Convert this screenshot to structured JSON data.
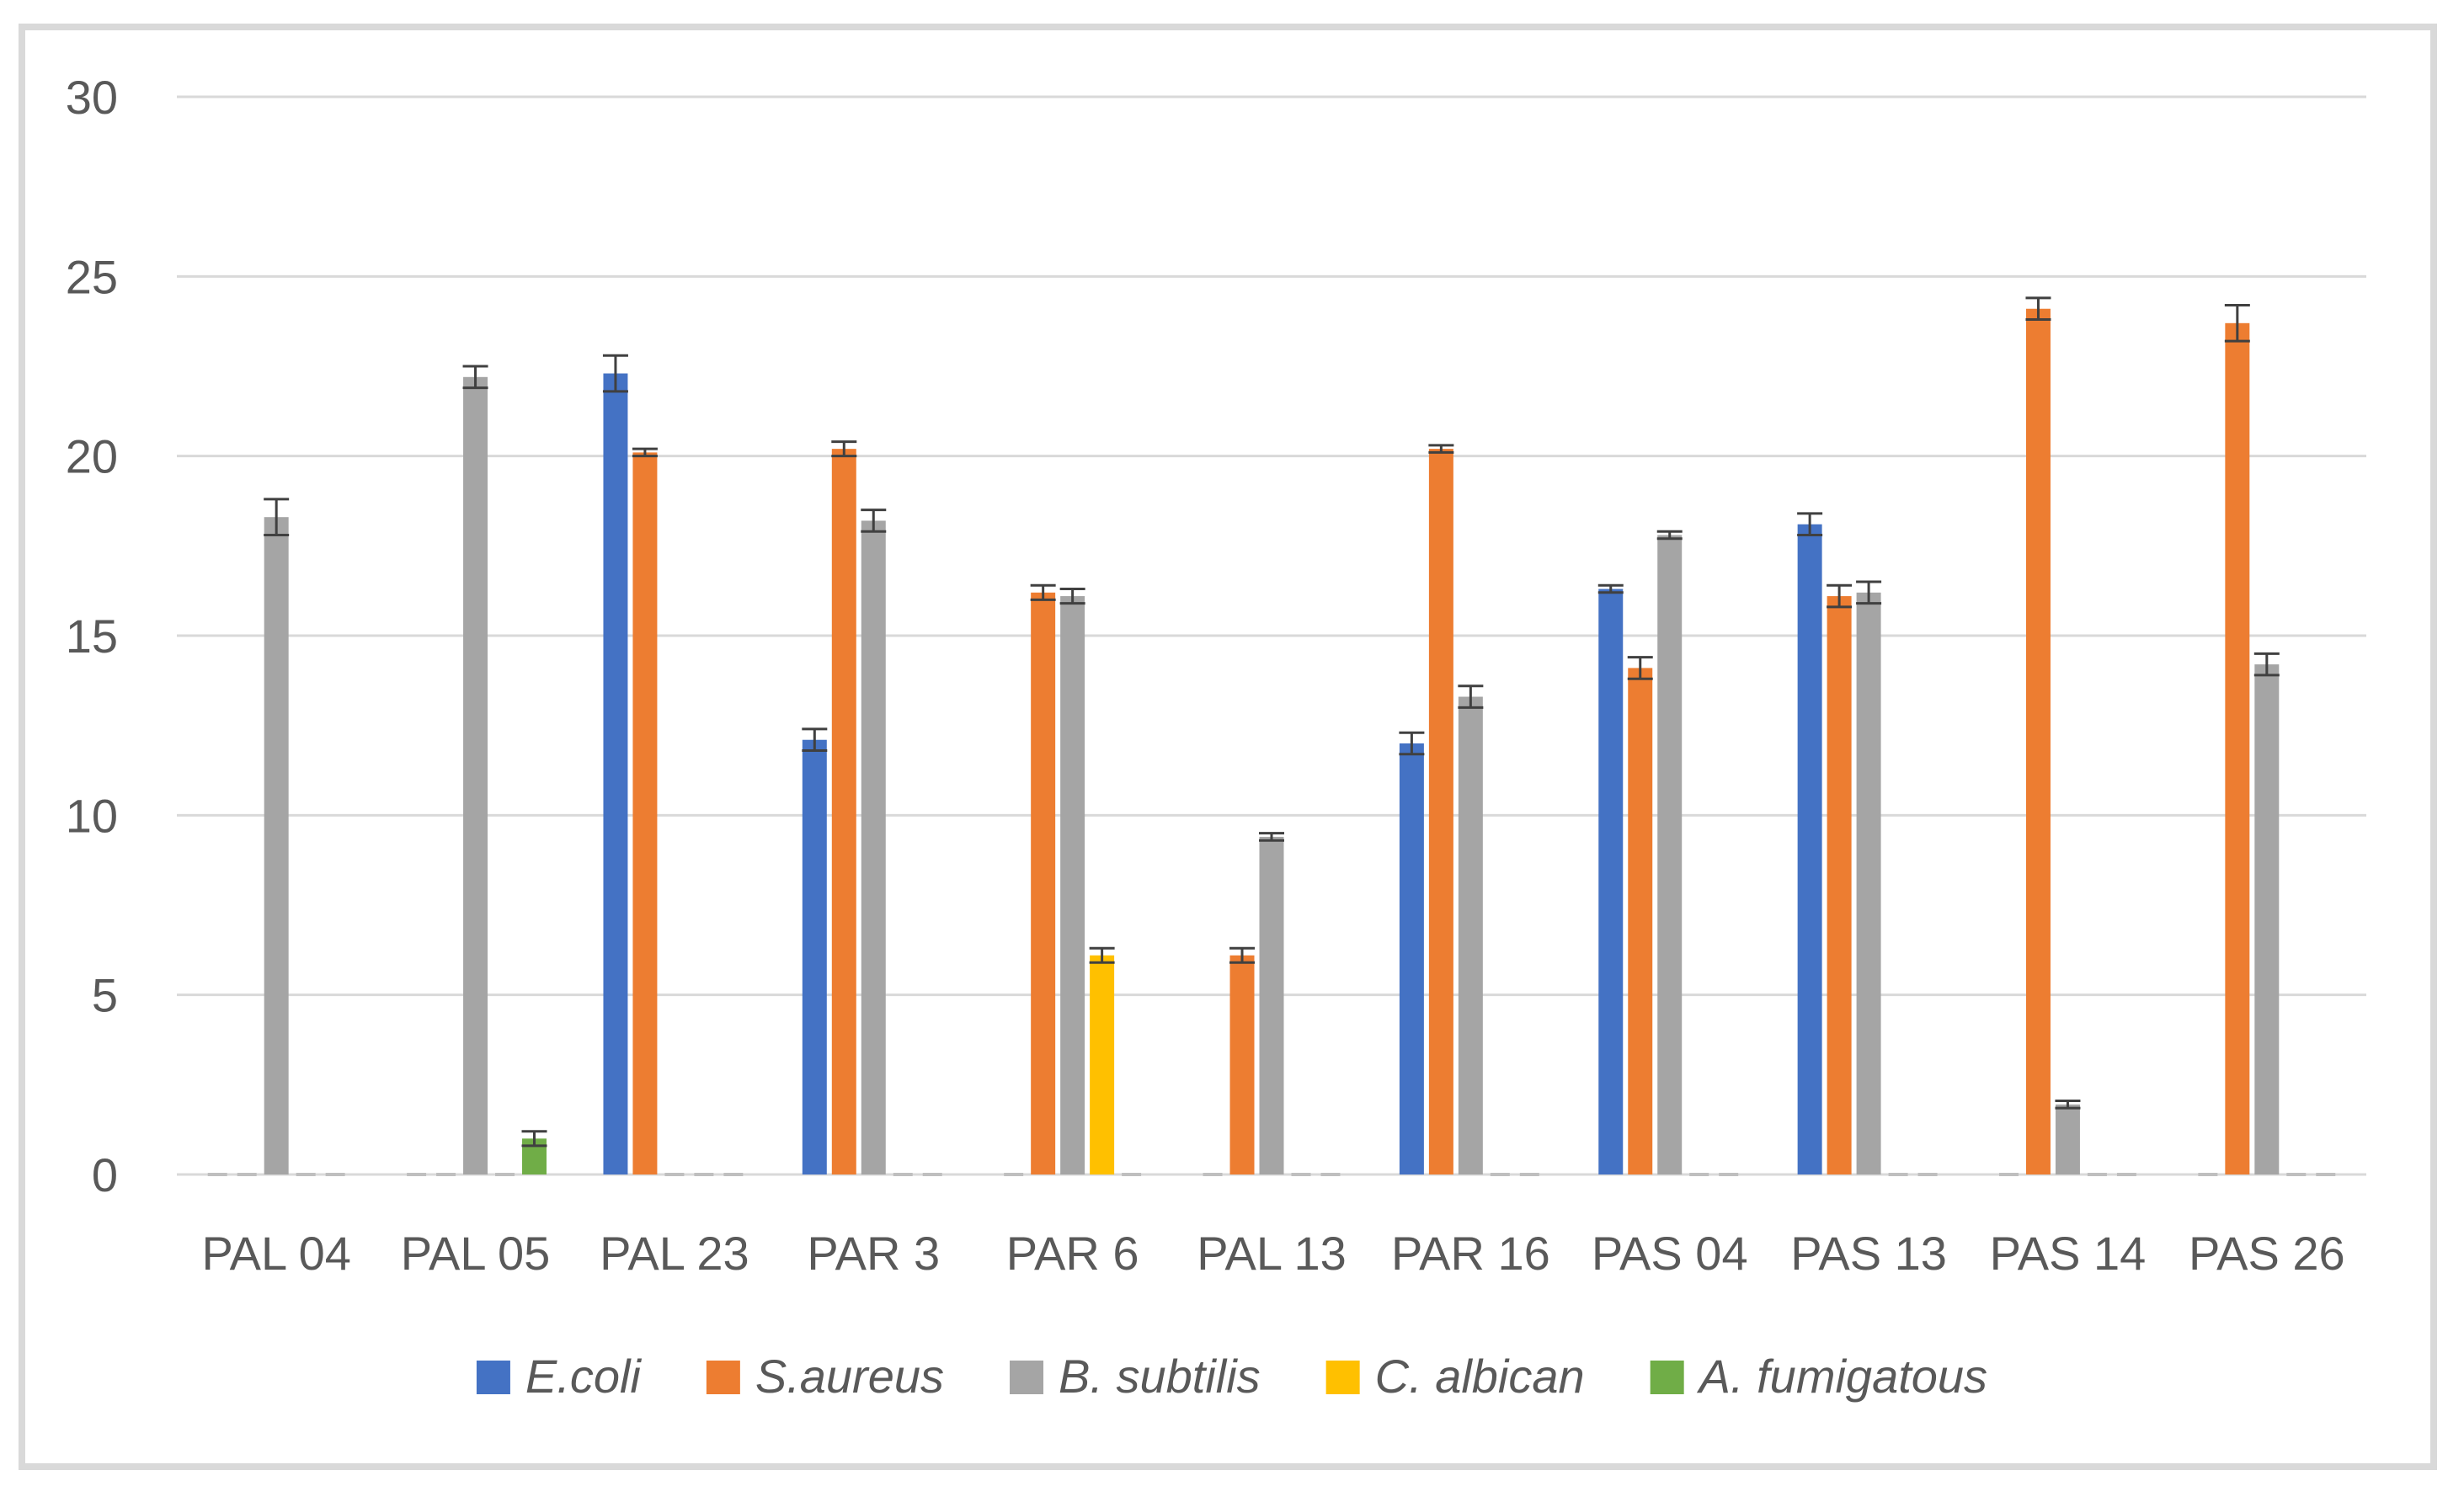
{
  "chart_data": {
    "type": "bar",
    "title": "",
    "xlabel": "",
    "ylabel": "",
    "ylim": [
      0,
      30
    ],
    "yticks": [
      "0",
      "5",
      "10",
      "15",
      "20",
      "25",
      "30"
    ],
    "grid": true,
    "legend_position": "bottom",
    "categories": [
      "PAL 04",
      "PAL 05",
      "PAL 23",
      "PAR 3",
      "PAR 6",
      "PAL 13",
      "PAR 16",
      "PAS 04",
      "PAS 13",
      "PAS 14",
      "PAS 26"
    ],
    "series": [
      {
        "name": "E.coli",
        "color": "#4472c4",
        "values": [
          0,
          0,
          22.3,
          12.1,
          0,
          0,
          12.0,
          16.3,
          18.1,
          0,
          0
        ],
        "errors": [
          0,
          0,
          0.5,
          0.3,
          0,
          0,
          0.3,
          0.1,
          0.3,
          0,
          0
        ]
      },
      {
        "name": "S.aureus",
        "color": "#ed7d31",
        "values": [
          0,
          0,
          20.1,
          20.2,
          16.2,
          6.1,
          20.2,
          14.1,
          16.1,
          24.1,
          23.7
        ],
        "errors": [
          0,
          0,
          0.1,
          0.2,
          0.2,
          0.2,
          0.1,
          0.3,
          0.3,
          0.3,
          0.5
        ]
      },
      {
        "name": "B. subtilis",
        "color": "#a5a5a5",
        "values": [
          18.3,
          22.2,
          0,
          18.2,
          16.1,
          9.4,
          13.3,
          17.8,
          16.2,
          1.95,
          14.2
        ],
        "errors": [
          0.5,
          0.3,
          0,
          0.3,
          0.2,
          0.1,
          0.3,
          0.1,
          0.3,
          0.1,
          0.3
        ]
      },
      {
        "name": "C. albican",
        "color": "#ffc000",
        "values": [
          0,
          0,
          0,
          0,
          6.1,
          0,
          0,
          0,
          0,
          0,
          0
        ],
        "errors": [
          0,
          0,
          0,
          0,
          0.2,
          0,
          0,
          0,
          0,
          0,
          0
        ]
      },
      {
        "name": "A. fumigatous",
        "color": "#70ad47",
        "values": [
          0,
          1.0,
          0,
          0,
          0,
          0,
          0,
          0,
          0,
          0,
          0
        ],
        "errors": [
          0,
          0.2,
          0,
          0,
          0,
          0,
          0,
          0,
          0,
          0,
          0
        ]
      }
    ]
  }
}
